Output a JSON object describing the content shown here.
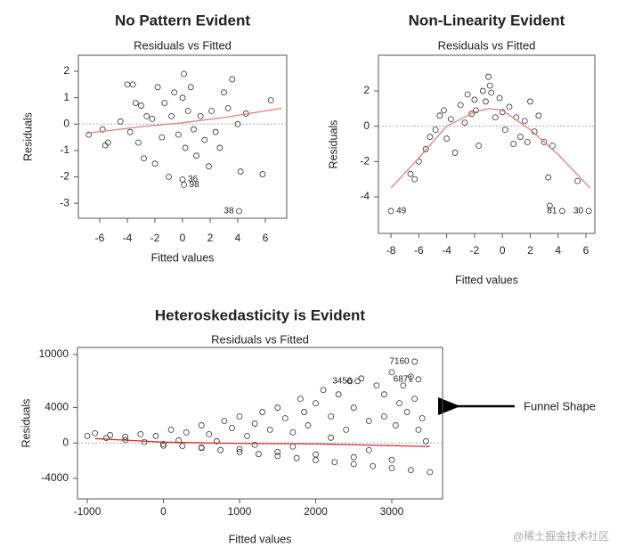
{
  "chart_data": [
    {
      "type": "scatter",
      "title": "No Pattern Evident",
      "subtitle": "Residuals vs Fitted",
      "xlabel": "Fitted values",
      "ylabel": "Residuals",
      "xlim": [
        -7.55,
        7.55
      ],
      "ylim": [
        -3.57,
        2.61
      ],
      "xticks": [
        -6,
        -4,
        -2,
        0,
        2,
        4,
        6
      ],
      "yticks": [
        -3,
        -2,
        -1,
        0,
        1,
        2
      ],
      "reference_line": 0,
      "point_color": "#333333",
      "x": [
        -6.8,
        -5.8,
        -5.6,
        -5.4,
        -4.5,
        -4,
        -3.8,
        -3.6,
        -3.4,
        -3.2,
        -3,
        -2.8,
        -2.6,
        -2.2,
        -2,
        -1.8,
        -1.5,
        -1.3,
        -1,
        -0.8,
        -0.6,
        -0.3,
        0,
        0.1,
        0.2,
        0.4,
        0.6,
        0.8,
        1,
        1.3,
        1.6,
        1.9,
        2.1,
        2.4,
        2.7,
        3,
        3.3,
        3.6,
        4,
        4.2,
        4.6,
        5.8,
        6.4
      ],
      "values": [
        -0.4,
        -0.2,
        -0.8,
        -0.7,
        0.1,
        1.5,
        -0.3,
        1.5,
        0.8,
        -0.7,
        0.7,
        -1.3,
        0.3,
        0.2,
        -1.5,
        1.4,
        -0.5,
        0.8,
        -2,
        0.3,
        1.2,
        -0.4,
        1,
        1.9,
        -0.9,
        0.5,
        1.4,
        -0.2,
        -1.2,
        0.3,
        -0.6,
        -1.6,
        0.5,
        -0.3,
        -0.9,
        1.2,
        0.6,
        1.7,
        0,
        -1.8,
        0.4,
        -1.9,
        0.9
      ],
      "labeled_points": [
        {
          "x": 0,
          "value": -2.1,
          "label": "36"
        },
        {
          "x": 0.1,
          "value": -2.3,
          "label": "98"
        },
        {
          "x": 4.1,
          "value": -3.3,
          "label": "38"
        }
      ],
      "trend": {
        "color": "#e08080",
        "x": [
          -7,
          -3,
          0,
          3,
          7.2
        ],
        "values": [
          -0.35,
          -0.1,
          0.05,
          0.25,
          0.6
        ]
      }
    },
    {
      "type": "scatter",
      "title": "Non-Linearity Evident",
      "subtitle": "Residuals vs Fitted",
      "xlabel": "Fitted values",
      "ylabel": "Residuals",
      "xlim": [
        -8.9,
        6.64
      ],
      "ylim": [
        -6.07,
        4.02
      ],
      "xticks": [
        -8,
        -6,
        -4,
        -2,
        0,
        2,
        4,
        6
      ],
      "yticks": [
        -4,
        -2,
        0,
        2
      ],
      "reference_line": 0,
      "point_color": "#333333",
      "x": [
        -6.6,
        -6.3,
        -6,
        -5.5,
        -5.2,
        -4.8,
        -4.5,
        -4.2,
        -4,
        -3.7,
        -3.4,
        -3,
        -2.7,
        -2.5,
        -2.2,
        -2,
        -1.7,
        -1.4,
        -1.2,
        -1,
        -0.8,
        -0.5,
        -0.2,
        0,
        0.2,
        0.5,
        0.8,
        1,
        1.3,
        1.6,
        2,
        2.3,
        2.6,
        3,
        3.3,
        3.6,
        3.4,
        5.4,
        -0.9,
        -1.9,
        1.8
      ],
      "values": [
        -2.7,
        -3,
        -2,
        -1.3,
        -0.6,
        -0.2,
        0.6,
        0.9,
        -0.7,
        0.4,
        -1.5,
        1.2,
        0.2,
        1.8,
        0.7,
        1.5,
        -1.1,
        2,
        1.4,
        2.8,
        1.9,
        0.5,
        1.6,
        0.8,
        -0.2,
        1.1,
        -1,
        0.5,
        -0.6,
        0.3,
        1.4,
        -0.3,
        0.6,
        -0.9,
        -2.9,
        -1.1,
        -4.5,
        -3.1,
        2.3,
        0.9,
        -0.9
      ],
      "labeled_points": [
        {
          "x": -8,
          "value": -4.8,
          "label": "49"
        },
        {
          "x": 4.3,
          "value": -4.8,
          "label": "81"
        },
        {
          "x": 6.2,
          "value": -4.8,
          "label": "30"
        }
      ],
      "trend": {
        "color": "#e08080",
        "x": [
          -8,
          -6,
          -4,
          -2,
          -1,
          0,
          2,
          4,
          6.3
        ],
        "values": [
          -3.5,
          -1.8,
          0,
          0.8,
          1,
          0.9,
          -0.2,
          -1.6,
          -3.5
        ]
      }
    },
    {
      "type": "scatter",
      "title": "Heteroskedasticity is Evident",
      "subtitle": "Residuals vs Fitted",
      "xlabel": "Fitted values",
      "ylabel": "Residuals",
      "xlim": [
        -1129,
        3667
      ],
      "ylim": [
        -6316,
        10806
      ],
      "xticks": [
        -1000,
        0,
        1000,
        2000,
        3000
      ],
      "yticks": [
        -4000,
        0,
        4000,
        10000
      ],
      "reference_line": 0,
      "point_color": "#333333",
      "x": [
        -1000,
        -750,
        -500,
        -250,
        0,
        250,
        500,
        750,
        1000,
        1250,
        1500,
        1750,
        2000,
        2250,
        2500,
        2750,
        3000,
        3250,
        3500,
        -900,
        -700,
        -500,
        -300,
        -100,
        100,
        300,
        500,
        600,
        800,
        900,
        1000,
        1100,
        1200,
        1300,
        1400,
        1500,
        1600,
        1700,
        1800,
        1850,
        1900,
        2000,
        2100,
        2200,
        2300,
        2400,
        2450,
        2500,
        2600,
        2700,
        2800,
        2900,
        2900,
        3000,
        3050,
        3100,
        3150,
        3200,
        3250,
        3300,
        3350,
        3400,
        3450,
        0,
        500,
        1000,
        1500,
        2000,
        2500,
        3000,
        200,
        700,
        1200,
        1700,
        2200,
        2700
      ],
      "values": [
        800,
        573,
        345,
        118,
        -110,
        -338,
        -565,
        -793,
        -1020,
        -1248,
        -1475,
        -1703,
        -1930,
        -2158,
        -2385,
        -2613,
        -2840,
        -3068,
        -3295,
        1100,
        900,
        700,
        1000,
        800,
        1500,
        1200,
        2000,
        1000,
        2500,
        1700,
        3000,
        800,
        2200,
        3500,
        1500,
        4000,
        2800,
        1200,
        5000,
        3500,
        2000,
        4500,
        6000,
        3000,
        5500,
        1500,
        7000,
        4000,
        7300,
        2500,
        6500,
        5500,
        3000,
        8000,
        2000,
        4500,
        6500,
        3500,
        7500,
        5000,
        1500,
        2800,
        200,
        -300,
        -500,
        -700,
        -1000,
        -1300,
        -1600,
        -1900,
        300,
        200,
        -200,
        -400,
        600,
        -800
      ],
      "labeled_points": [
        {
          "x": 3300,
          "value": 9200,
          "label": "7160"
        },
        {
          "x": 2550,
          "value": 7000,
          "label": "3456"
        },
        {
          "x": 3350,
          "value": 7200,
          "label": "6871"
        }
      ],
      "trend": {
        "color": "#d03030",
        "x": [
          -900,
          0,
          1000,
          2000,
          3000,
          3500
        ],
        "values": [
          500,
          100,
          -50,
          -100,
          -300,
          -400
        ]
      }
    }
  ],
  "annotations": {
    "funnel": "Funnel Shape",
    "watermark": "@稀土掘金技术社区"
  }
}
